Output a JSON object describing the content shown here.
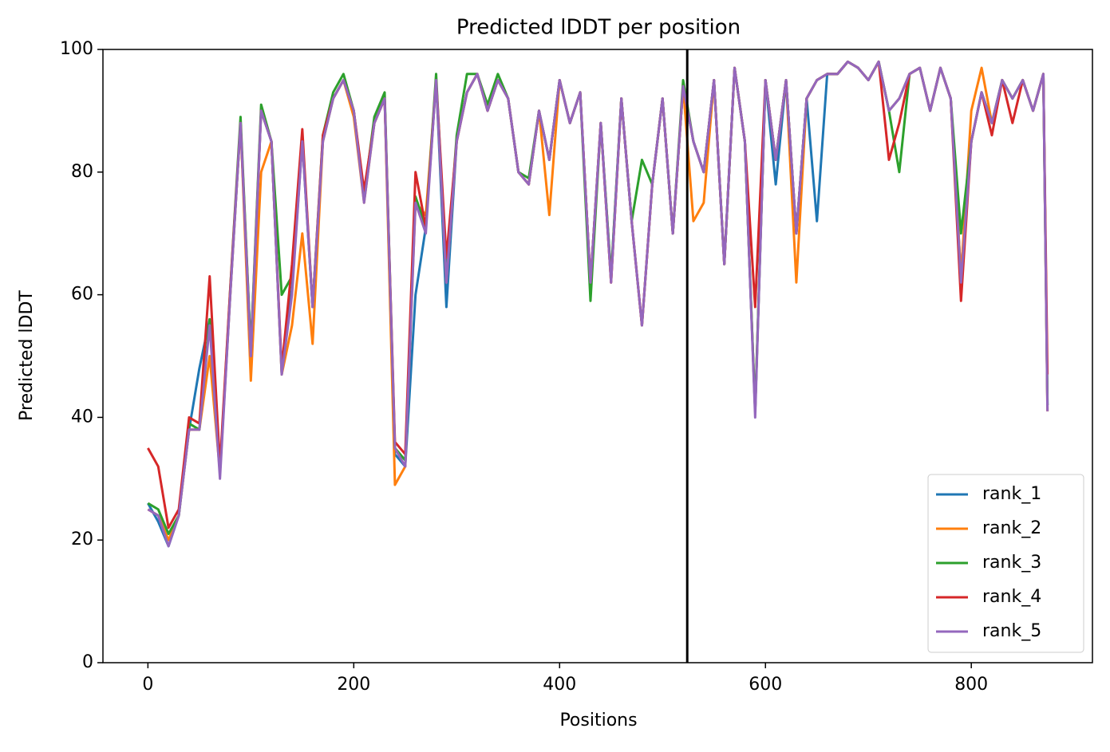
{
  "chart_data": {
    "type": "line",
    "title": "Predicted lDDT per position",
    "xlabel": "Positions",
    "ylabel": "Predicted lDDT",
    "x": [
      0,
      10,
      20,
      30,
      40,
      50,
      60,
      70,
      80,
      90,
      100,
      110,
      120,
      130,
      140,
      150,
      160,
      170,
      180,
      190,
      200,
      210,
      220,
      230,
      240,
      250,
      260,
      270,
      280,
      290,
      300,
      310,
      320,
      330,
      340,
      350,
      360,
      370,
      380,
      390,
      400,
      410,
      420,
      430,
      440,
      450,
      460,
      470,
      480,
      490,
      500,
      510,
      520,
      530,
      540,
      550,
      560,
      570,
      580,
      590,
      600,
      610,
      620,
      630,
      640,
      650,
      660,
      670,
      680,
      690,
      700,
      710,
      720,
      730,
      740,
      750,
      760,
      770,
      780,
      790,
      800,
      810,
      820,
      830,
      840,
      850,
      860,
      870,
      874
    ],
    "series": [
      {
        "name": "rank_1",
        "color": "#1f77b4",
        "values": [
          26,
          23,
          19,
          24,
          38,
          48,
          56,
          31,
          60,
          88,
          51,
          90,
          85,
          47,
          61,
          85,
          58,
          85,
          92,
          95,
          90,
          76,
          88,
          92,
          34,
          32,
          60,
          71,
          95,
          58,
          85,
          93,
          96,
          90,
          95,
          92,
          80,
          78,
          90,
          82,
          95,
          88,
          93,
          62,
          88,
          63,
          92,
          72,
          55,
          78,
          92,
          70,
          94,
          85,
          80,
          95,
          65,
          97,
          85,
          41,
          95,
          78,
          95,
          70,
          92,
          72,
          96,
          96,
          98,
          97,
          95,
          98,
          90,
          92,
          96,
          97,
          90,
          97,
          92,
          63,
          85,
          93,
          88,
          95,
          92,
          95,
          90,
          96,
          42
        ]
      },
      {
        "name": "rank_2",
        "color": "#ff7f0e",
        "values": [
          25,
          24,
          20,
          24,
          38,
          38,
          50,
          31,
          60,
          88,
          46,
          80,
          85,
          47,
          55,
          70,
          52,
          85,
          92,
          95,
          89,
          75,
          88,
          92,
          29,
          32,
          75,
          73,
          95,
          62,
          85,
          93,
          96,
          90,
          95,
          92,
          80,
          78,
          90,
          73,
          95,
          88,
          93,
          62,
          88,
          62,
          92,
          72,
          55,
          78,
          92,
          70,
          94,
          72,
          75,
          95,
          65,
          97,
          85,
          41,
          95,
          82,
          95,
          62,
          92,
          95,
          96,
          96,
          98,
          97,
          95,
          98,
          90,
          92,
          96,
          97,
          90,
          97,
          92,
          63,
          90,
          97,
          88,
          95,
          92,
          95,
          90,
          96,
          41
        ]
      },
      {
        "name": "rank_3",
        "color": "#2ca02c",
        "values": [
          26,
          25,
          21,
          24,
          39,
          38,
          56,
          31,
          61,
          89,
          51,
          91,
          85,
          60,
          63,
          86,
          58,
          86,
          93,
          96,
          90,
          76,
          89,
          93,
          35,
          33,
          76,
          71,
          96,
          63,
          86,
          96,
          96,
          91,
          96,
          92,
          80,
          79,
          90,
          82,
          95,
          88,
          93,
          59,
          88,
          63,
          92,
          72,
          82,
          78,
          92,
          70,
          95,
          85,
          80,
          95,
          65,
          97,
          85,
          41,
          95,
          82,
          95,
          70,
          92,
          95,
          96,
          96,
          98,
          97,
          95,
          98,
          90,
          80,
          96,
          97,
          90,
          97,
          92,
          70,
          85,
          93,
          88,
          95,
          92,
          95,
          90,
          96,
          42
        ]
      },
      {
        "name": "rank_4",
        "color": "#d62728",
        "values": [
          35,
          32,
          22,
          25,
          40,
          39,
          63,
          32,
          61,
          88,
          50,
          90,
          85,
          48,
          65,
          87,
          58,
          86,
          92,
          95,
          90,
          77,
          88,
          92,
          36,
          34,
          80,
          71,
          95,
          66,
          85,
          93,
          96,
          90,
          95,
          92,
          80,
          78,
          90,
          82,
          95,
          88,
          93,
          62,
          88,
          62,
          92,
          72,
          55,
          78,
          92,
          70,
          94,
          85,
          80,
          95,
          65,
          97,
          85,
          58,
          95,
          82,
          95,
          70,
          92,
          95,
          96,
          96,
          98,
          97,
          95,
          98,
          82,
          88,
          96,
          97,
          90,
          97,
          92,
          59,
          85,
          93,
          86,
          95,
          88,
          95,
          90,
          96,
          47
        ]
      },
      {
        "name": "rank_5",
        "color": "#9467bd",
        "values": [
          25,
          24,
          19,
          24,
          38,
          38,
          55,
          30,
          60,
          88,
          50,
          90,
          85,
          47,
          60,
          85,
          58,
          85,
          92,
          95,
          90,
          75,
          88,
          92,
          35,
          32,
          75,
          70,
          95,
          62,
          85,
          93,
          96,
          90,
          95,
          92,
          80,
          78,
          90,
          82,
          95,
          88,
          93,
          62,
          88,
          62,
          92,
          72,
          55,
          78,
          92,
          70,
          94,
          85,
          80,
          95,
          65,
          97,
          85,
          40,
          95,
          82,
          95,
          70,
          92,
          95,
          96,
          96,
          98,
          97,
          95,
          98,
          90,
          92,
          96,
          97,
          90,
          97,
          92,
          62,
          85,
          93,
          88,
          95,
          92,
          95,
          90,
          96,
          41
        ]
      }
    ],
    "vlines": [
      524
    ],
    "vline_color": "#000000",
    "xlim": [
      -43.7,
      917.7
    ],
    "xticks": [
      0,
      200,
      400,
      600,
      800
    ],
    "ylim": [
      0,
      100
    ],
    "yticks": [
      0,
      20,
      40,
      60,
      80,
      100
    ],
    "grid": false,
    "legend": "lower right"
  }
}
